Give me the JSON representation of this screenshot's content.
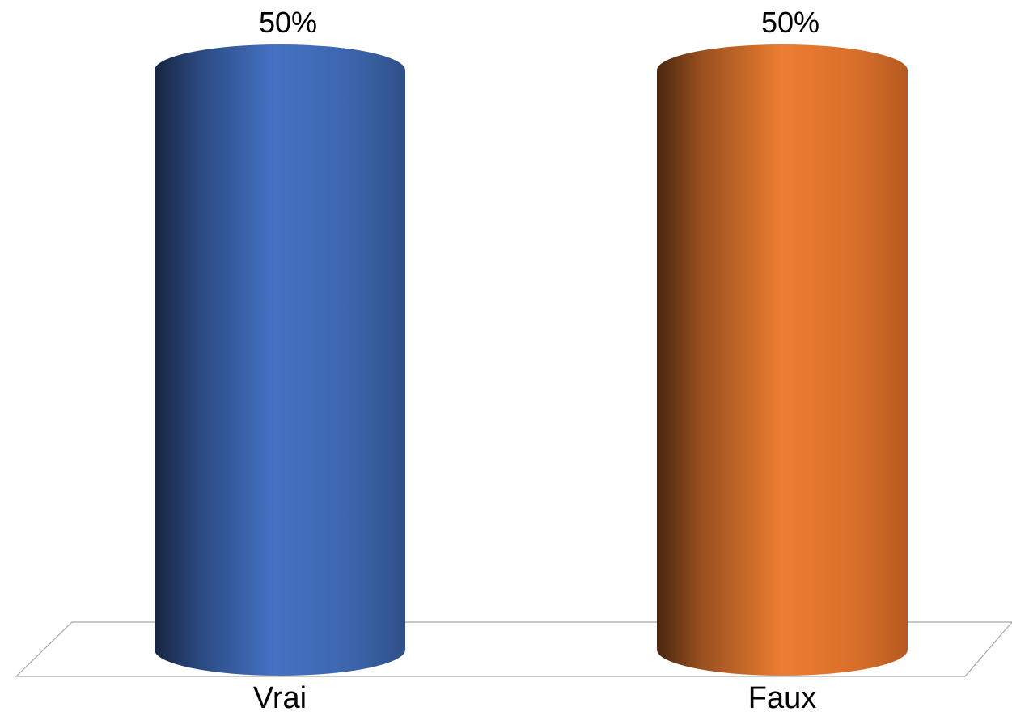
{
  "chart_data": {
    "type": "bar",
    "style": "3d-cylinder",
    "categories": [
      "Vrai",
      "Faux"
    ],
    "values": [
      50,
      50
    ],
    "value_suffix": "%",
    "data_labels": [
      "50%",
      "50%"
    ],
    "ylim": [
      0,
      50
    ],
    "grid": false,
    "legend": "none",
    "colors": [
      "#4472C4",
      "#ED7D31"
    ],
    "floor_color": "#A6A6A6"
  }
}
